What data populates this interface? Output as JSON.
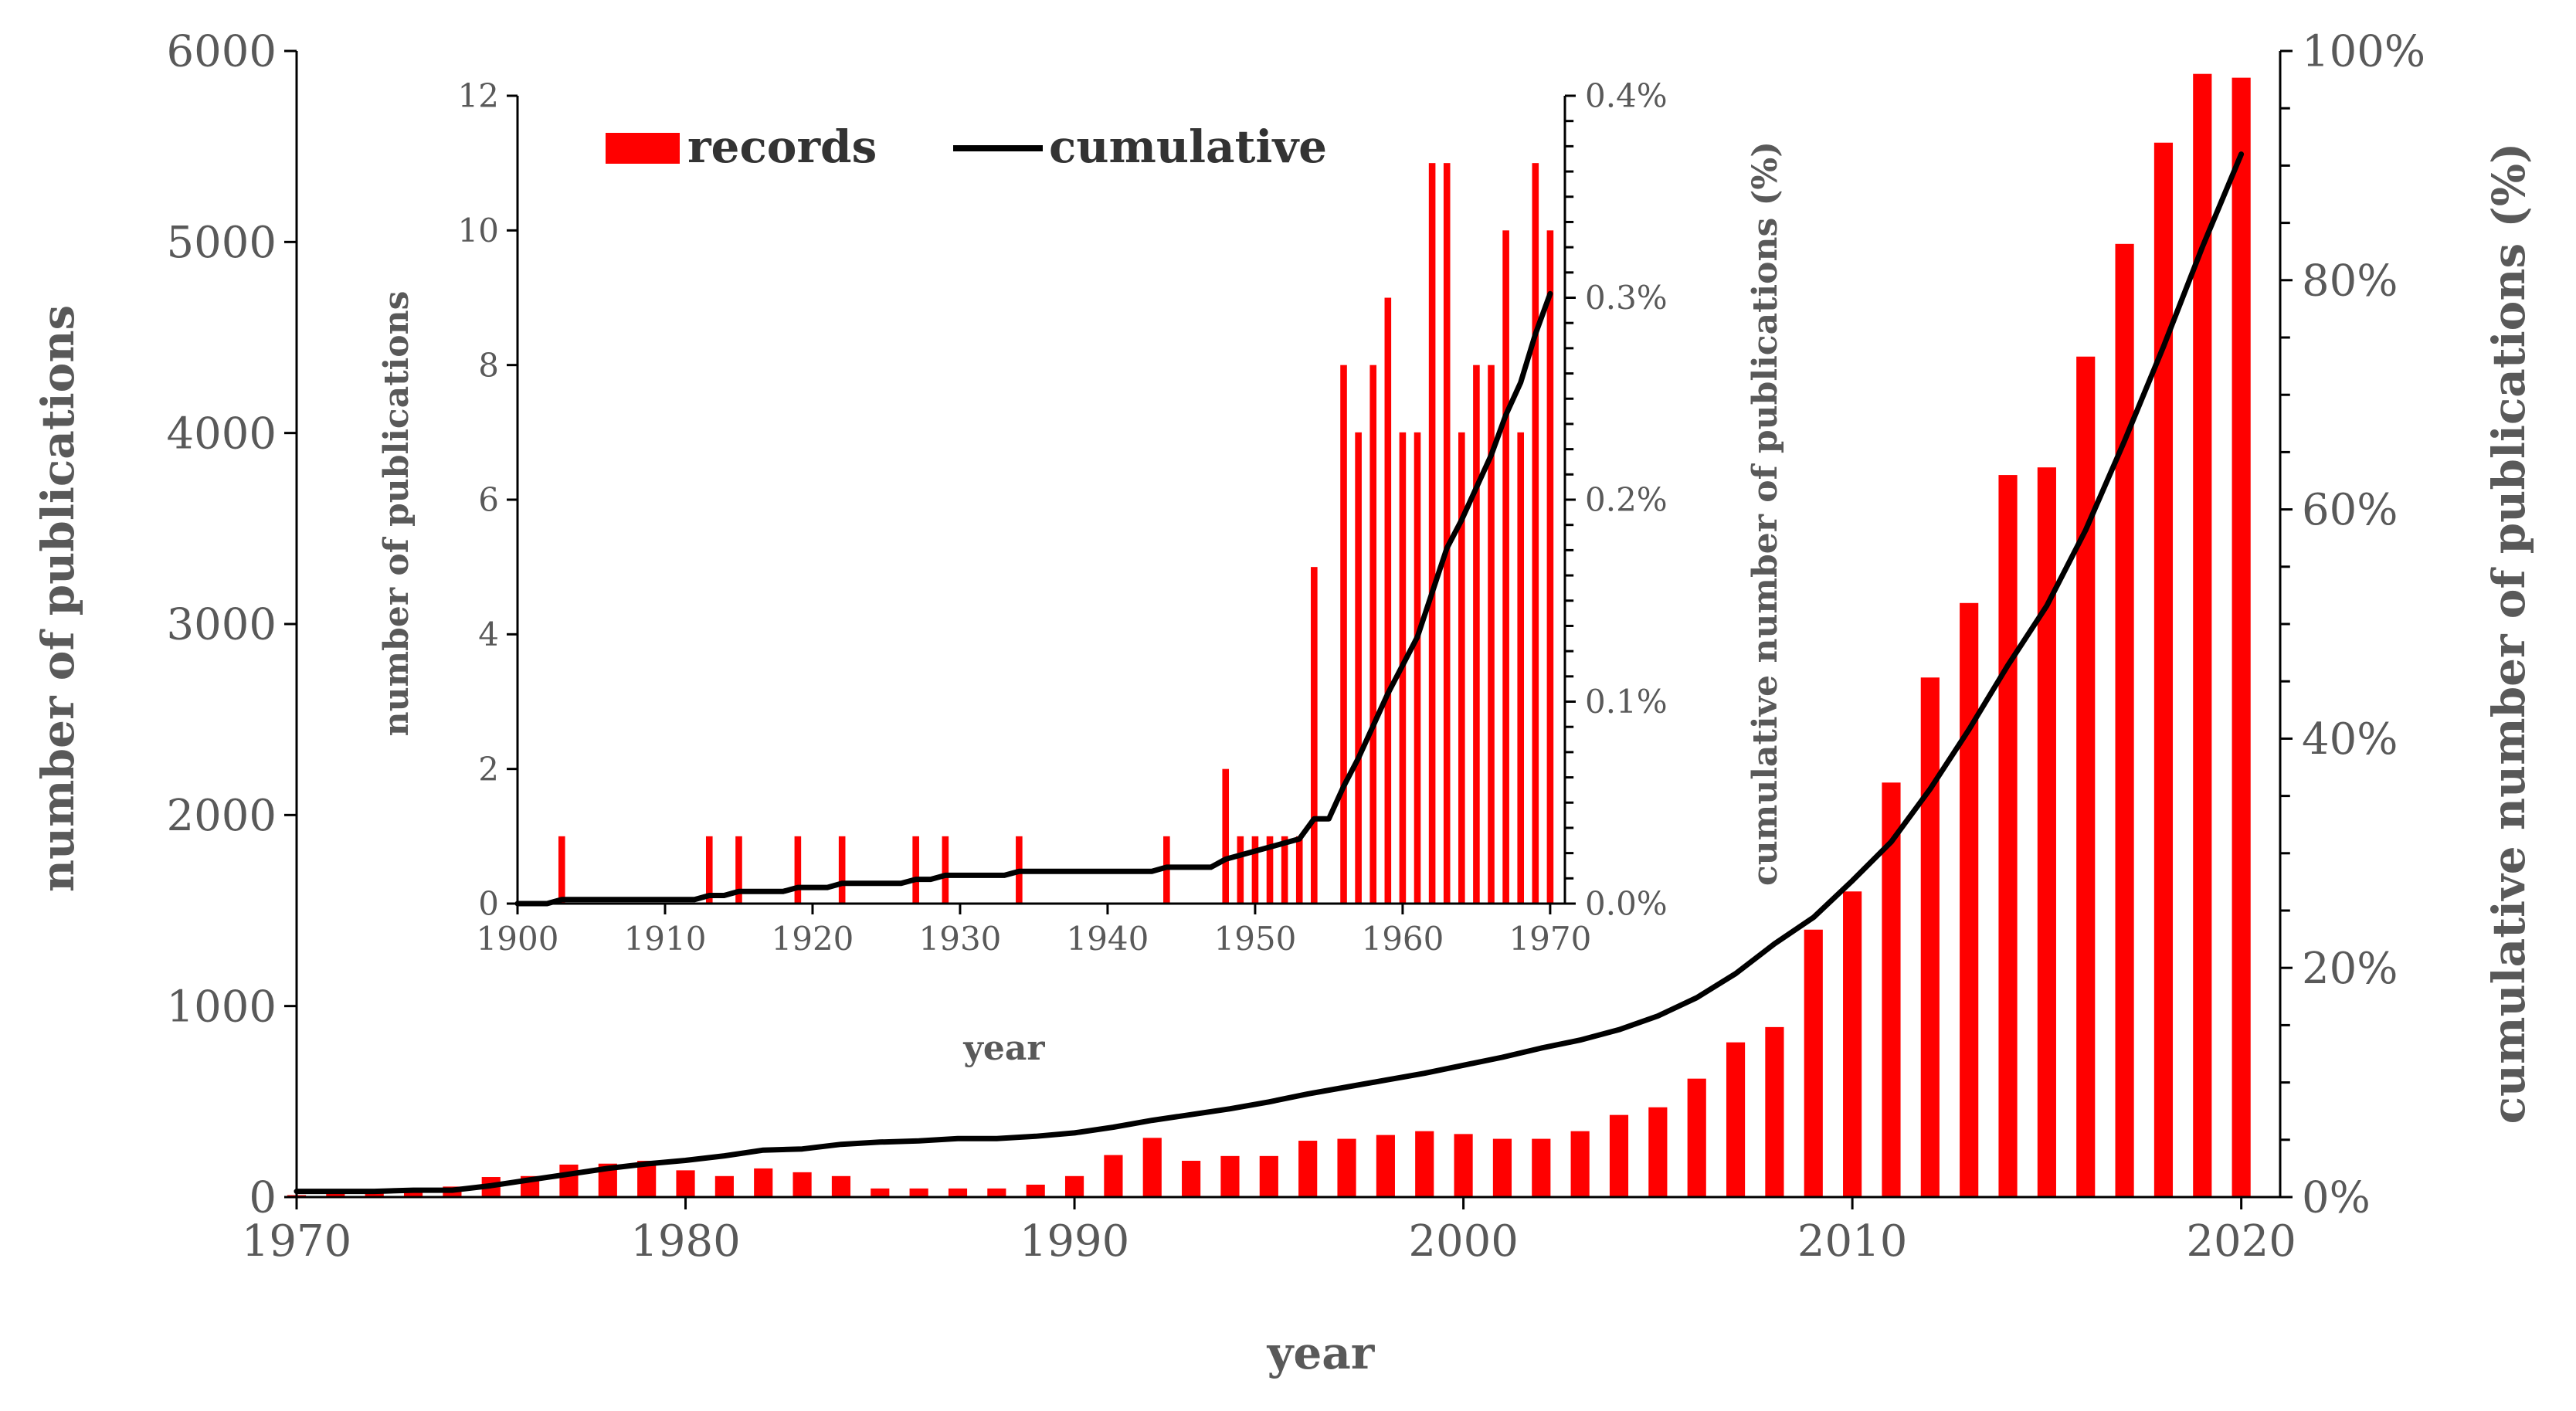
{
  "chart_data": [
    {
      "id": "main",
      "type": "bar+line",
      "title": "",
      "xlabel": "year",
      "ylabel": "number of publications",
      "y2label": "cumulative number of publications (%)",
      "x_ticks": [
        "1970",
        "1980",
        "1990",
        "2000",
        "2010",
        "2020"
      ],
      "y_ticks": [
        "0",
        "1000",
        "2000",
        "3000",
        "4000",
        "5000",
        "6000"
      ],
      "y2_ticks": [
        "0%",
        "20%",
        "40%",
        "60%",
        "80%",
        "100%"
      ],
      "xlim": [
        1970,
        2021
      ],
      "ylim": [
        0,
        6000
      ],
      "y2lim": [
        0,
        100
      ],
      "colors": {
        "bars": "#ff0000",
        "line": "#000000",
        "text": "#595959",
        "axis": "#000000"
      },
      "series": [
        {
          "name": "records",
          "kind": "bar",
          "x": [
            1970,
            1971,
            1972,
            1973,
            1974,
            1975,
            1976,
            1977,
            1978,
            1979,
            1980,
            1981,
            1982,
            1983,
            1984,
            1985,
            1986,
            1987,
            1988,
            1989,
            1990,
            1991,
            1992,
            1993,
            1994,
            1995,
            1996,
            1997,
            1998,
            1999,
            2000,
            2001,
            2002,
            2003,
            2004,
            2005,
            2006,
            2007,
            2008,
            2009,
            2010,
            2011,
            2012,
            2013,
            2014,
            2015,
            2016,
            2017,
            2018,
            2019,
            2020
          ],
          "values": [
            10,
            20,
            20,
            35,
            55,
            105,
            110,
            170,
            175,
            190,
            140,
            110,
            150,
            130,
            110,
            45,
            45,
            45,
            45,
            65,
            110,
            220,
            310,
            190,
            215,
            215,
            295,
            305,
            325,
            345,
            330,
            305,
            305,
            345,
            430,
            470,
            620,
            810,
            890,
            1400,
            1600,
            2170,
            2720,
            3110,
            3780,
            3820,
            4400,
            4990,
            5520,
            5880,
            5860
          ]
        },
        {
          "name": "cumulative",
          "kind": "line",
          "axis": "right",
          "x": [
            1970,
            1971,
            1972,
            1973,
            1974,
            1975,
            1976,
            1977,
            1978,
            1979,
            1980,
            1981,
            1982,
            1983,
            1984,
            1985,
            1986,
            1987,
            1988,
            1989,
            1990,
            1991,
            1992,
            1993,
            1994,
            1995,
            1996,
            1997,
            1998,
            1999,
            2000,
            2001,
            2002,
            2003,
            2004,
            2005,
            2006,
            2007,
            2008,
            2009,
            2010,
            2011,
            2012,
            2013,
            2014,
            2015,
            2016,
            2017,
            2018,
            2019,
            2020
          ],
          "values": [
            0.5,
            0.5,
            0.5,
            0.6,
            0.6,
            1.0,
            1.5,
            2.0,
            2.5,
            2.9,
            3.2,
            3.6,
            4.1,
            4.2,
            4.6,
            4.8,
            4.9,
            5.1,
            5.1,
            5.3,
            5.6,
            6.1,
            6.7,
            7.2,
            7.7,
            8.3,
            9.0,
            9.6,
            10.2,
            10.8,
            11.5,
            12.2,
            13.0,
            13.7,
            14.6,
            15.8,
            17.4,
            19.5,
            22.1,
            24.4,
            27.6,
            31.0,
            35.6,
            40.8,
            46.4,
            51.6,
            58.2,
            66.0,
            74.2,
            82.9,
            91.0
          ]
        }
      ]
    },
    {
      "id": "inset",
      "type": "bar+line",
      "title": "",
      "xlabel": "year",
      "ylabel": "number of publications",
      "y2label": "cumulative number of publications (%)",
      "x_ticks": [
        "1900",
        "1910",
        "1920",
        "1930",
        "1940",
        "1950",
        "1960",
        "1970"
      ],
      "y_ticks": [
        "0",
        "2",
        "4",
        "6",
        "8",
        "10",
        "12"
      ],
      "y2_ticks": [
        "0.0%",
        "0.1%",
        "0.2%",
        "0.3%",
        "0.4%"
      ],
      "xlim": [
        1900,
        1971
      ],
      "ylim": [
        0,
        12
      ],
      "y2lim": [
        0,
        0.4
      ],
      "legend": {
        "position": "top-left",
        "entries": [
          "records",
          "cumulative"
        ]
      },
      "colors": {
        "bars": "#ff0000",
        "line": "#000000"
      },
      "series": [
        {
          "name": "records",
          "kind": "bar",
          "x": [
            1903,
            1913,
            1915,
            1919,
            1922,
            1927,
            1929,
            1934,
            1944,
            1948,
            1949,
            1950,
            1951,
            1952,
            1953,
            1954,
            1956,
            1957,
            1958,
            1959,
            1960,
            1961,
            1962,
            1963,
            1964,
            1965,
            1966,
            1967,
            1968,
            1969,
            1970
          ],
          "values": [
            1,
            1,
            1,
            1,
            1,
            1,
            1,
            1,
            1,
            2,
            1,
            1,
            1,
            1,
            1,
            5,
            8,
            7,
            8,
            9,
            7,
            7,
            11,
            11,
            7,
            8,
            8,
            10,
            7,
            11,
            10
          ]
        },
        {
          "name": "cumulative",
          "kind": "line",
          "axis": "right",
          "x": [
            1900,
            1902,
            1903,
            1912,
            1913,
            1914,
            1915,
            1918,
            1919,
            1921,
            1922,
            1926,
            1927,
            1928,
            1929,
            1933,
            1934,
            1943,
            1944,
            1947,
            1948,
            1949,
            1950,
            1951,
            1952,
            1953,
            1954,
            1955,
            1956,
            1957,
            1958,
            1959,
            1960,
            1961,
            1962,
            1963,
            1964,
            1965,
            1966,
            1967,
            1968,
            1969,
            1970
          ],
          "values": [
            0.0,
            0.0,
            0.002,
            0.002,
            0.004,
            0.004,
            0.006,
            0.006,
            0.008,
            0.008,
            0.01,
            0.01,
            0.012,
            0.012,
            0.014,
            0.014,
            0.016,
            0.016,
            0.018,
            0.018,
            0.022,
            0.024,
            0.026,
            0.028,
            0.03,
            0.032,
            0.042,
            0.042,
            0.058,
            0.072,
            0.088,
            0.104,
            0.118,
            0.132,
            0.154,
            0.176,
            0.19,
            0.206,
            0.222,
            0.242,
            0.258,
            0.282,
            0.302
          ]
        }
      ]
    }
  ]
}
